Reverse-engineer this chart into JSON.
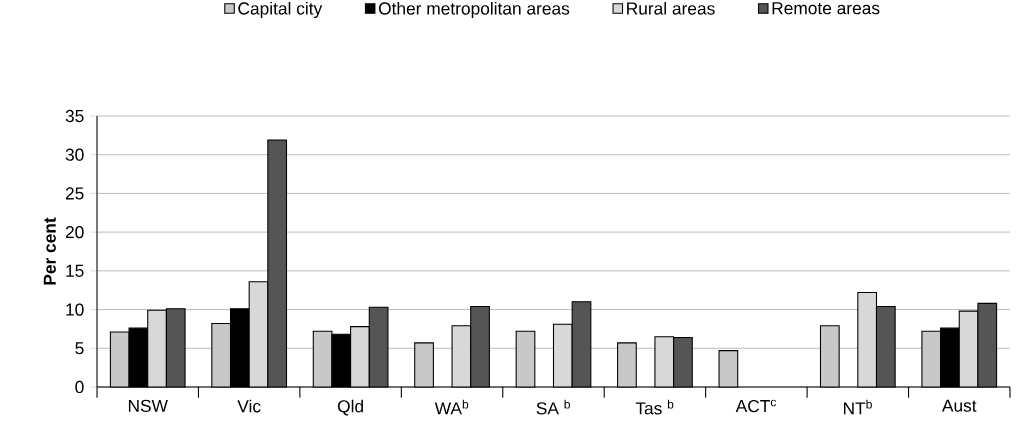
{
  "chart_data": {
    "type": "bar",
    "ylabel": "Per cent",
    "categories": [
      "NSW",
      "Vic",
      "Qld",
      "WA$^{b}$",
      "SA $^{b}$",
      "Tas $^{b}$",
      "ACT$^{c}$",
      "NT$^{b}$",
      "Aust"
    ],
    "series": [
      {
        "name": "Capital city",
        "color": "#c8c8c8",
        "values": [
          7.1,
          8.2,
          7.2,
          5.7,
          7.2,
          5.7,
          4.7,
          7.9,
          7.2
        ]
      },
      {
        "name": "Other metropolitan areas",
        "color": "#000000",
        "values": [
          7.6,
          10.1,
          6.8,
          null,
          null,
          null,
          null,
          null,
          7.6
        ]
      },
      {
        "name": "Rural areas",
        "color": "#d8d8d8",
        "values": [
          9.9,
          13.6,
          7.8,
          7.9,
          8.1,
          6.5,
          null,
          12.2,
          9.8
        ]
      },
      {
        "name": "Remote areas",
        "color": "#555555",
        "values": [
          10.1,
          31.9,
          10.3,
          10.4,
          11.0,
          6.4,
          null,
          10.4,
          10.8
        ]
      }
    ],
    "ylim": [
      0,
      35
    ],
    "yticks": [
      0,
      5,
      10,
      15,
      20,
      25,
      30,
      35
    ],
    "grid": "y",
    "legend": "top"
  }
}
